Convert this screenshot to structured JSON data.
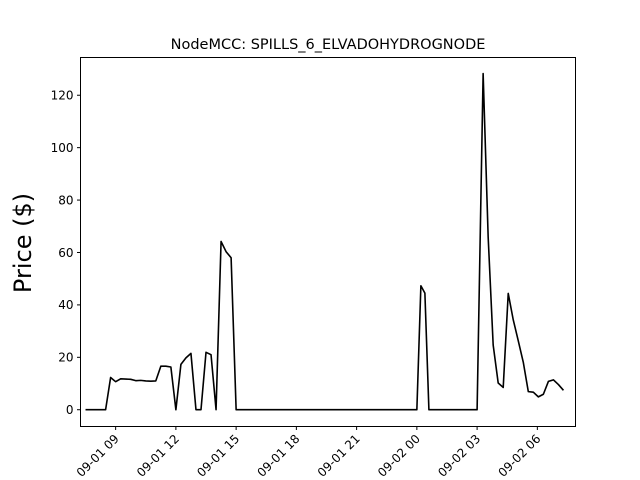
{
  "chart_data": {
    "type": "line",
    "title": "NodeMCC: SPILLS_6_ELVADOHYDROGNODE",
    "xlabel": "",
    "ylabel": "Price ($)",
    "x_unit": "hours from 2022-09-01 00:00",
    "x_ticks": [
      {
        "x": 9,
        "label": "09-01 09"
      },
      {
        "x": 12,
        "label": "09-01 12"
      },
      {
        "x": 15,
        "label": "09-01 15"
      },
      {
        "x": 18,
        "label": "09-01 18"
      },
      {
        "x": 21,
        "label": "09-01 21"
      },
      {
        "x": 24,
        "label": "09-02 00"
      },
      {
        "x": 27,
        "label": "09-02 03"
      },
      {
        "x": 30,
        "label": "09-02 06"
      }
    ],
    "y_ticks": [
      0,
      20,
      40,
      60,
      80,
      100,
      120
    ],
    "xlim": [
      7.25,
      31.9
    ],
    "ylim": [
      -6.4,
      134.4
    ],
    "line_color": "#000000",
    "grid": false,
    "series": [
      {
        "name": "",
        "points": [
          [
            7.5,
            0
          ],
          [
            8.0,
            0
          ],
          [
            8.5,
            0
          ],
          [
            8.75,
            12.3
          ],
          [
            9.0,
            10.7
          ],
          [
            9.25,
            11.8
          ],
          [
            9.5,
            11.7
          ],
          [
            9.75,
            11.6
          ],
          [
            10.0,
            11.1
          ],
          [
            10.25,
            11.2
          ],
          [
            10.5,
            11.0
          ],
          [
            10.75,
            10.9
          ],
          [
            11.0,
            11.0
          ],
          [
            11.25,
            16.6
          ],
          [
            11.5,
            16.6
          ],
          [
            11.75,
            16.3
          ],
          [
            12.0,
            0
          ],
          [
            12.25,
            17.3
          ],
          [
            12.5,
            19.8
          ],
          [
            12.75,
            21.5
          ],
          [
            13.0,
            0
          ],
          [
            13.25,
            0
          ],
          [
            13.5,
            21.9
          ],
          [
            13.75,
            21.0
          ],
          [
            14.0,
            0
          ],
          [
            14.25,
            64.2
          ],
          [
            14.5,
            60.3
          ],
          [
            14.75,
            58.0
          ],
          [
            15.0,
            0
          ],
          [
            24.0,
            0
          ],
          [
            24.2,
            47.3
          ],
          [
            24.4,
            44.5
          ],
          [
            24.6,
            0
          ],
          [
            27.0,
            0
          ],
          [
            27.3,
            128.3
          ],
          [
            27.55,
            66.0
          ],
          [
            27.8,
            24.7
          ],
          [
            28.05,
            10.2
          ],
          [
            28.3,
            8.5
          ],
          [
            28.55,
            44.4
          ],
          [
            28.8,
            34.3
          ],
          [
            29.05,
            26.3
          ],
          [
            29.3,
            18.1
          ],
          [
            29.55,
            6.9
          ],
          [
            29.8,
            6.7
          ],
          [
            30.05,
            4.9
          ],
          [
            30.3,
            5.9
          ],
          [
            30.55,
            10.8
          ],
          [
            30.8,
            11.4
          ],
          [
            31.05,
            9.6
          ],
          [
            31.3,
            7.4
          ]
        ]
      }
    ]
  }
}
